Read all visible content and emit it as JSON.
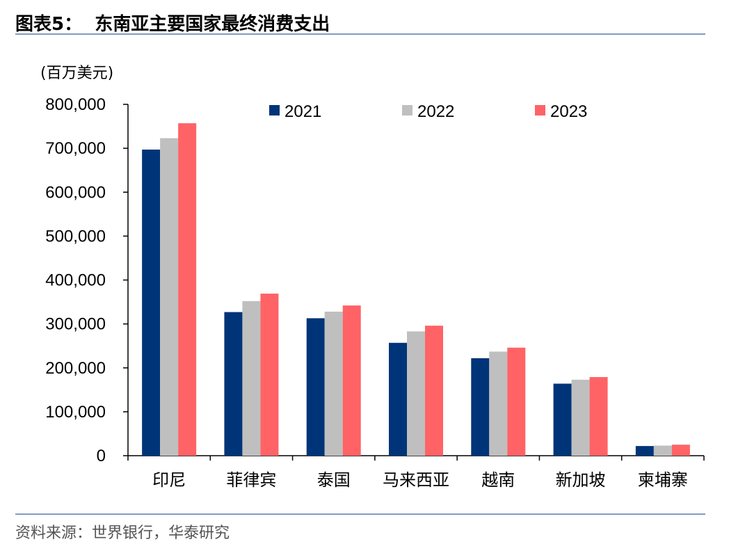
{
  "figure": {
    "title": "图表5：  东南亚主要国家最终消费支出",
    "source": "资料来源：世界银行，华泰研究"
  },
  "chart_data": {
    "type": "bar",
    "title": "",
    "ylabel": "(百万美元)",
    "xlabel": "",
    "categories": [
      "印尼",
      "菲律宾",
      "泰国",
      "马来西亚",
      "越南",
      "新加坡",
      "柬埔寨"
    ],
    "series": [
      {
        "name": "2021",
        "color": "#003478",
        "values": [
          697000,
          327000,
          313000,
          257000,
          222000,
          164000,
          22000
        ]
      },
      {
        "name": "2022",
        "color": "#bfbfbf",
        "values": [
          723000,
          352000,
          328000,
          283000,
          237000,
          173000,
          23000
        ]
      },
      {
        "name": "2023",
        "color": "#ff6366",
        "values": [
          757000,
          369000,
          342000,
          296000,
          246000,
          179000,
          25000
        ]
      }
    ],
    "ylim": [
      0,
      800000
    ],
    "yticks": [
      0,
      100000,
      200000,
      300000,
      400000,
      500000,
      600000,
      700000,
      800000
    ],
    "ytick_labels": [
      "0",
      "100,000",
      "200,000",
      "300,000",
      "400,000",
      "500,000",
      "600,000",
      "700,000",
      "800,000"
    ],
    "grid": false,
    "legend_position": "top"
  }
}
